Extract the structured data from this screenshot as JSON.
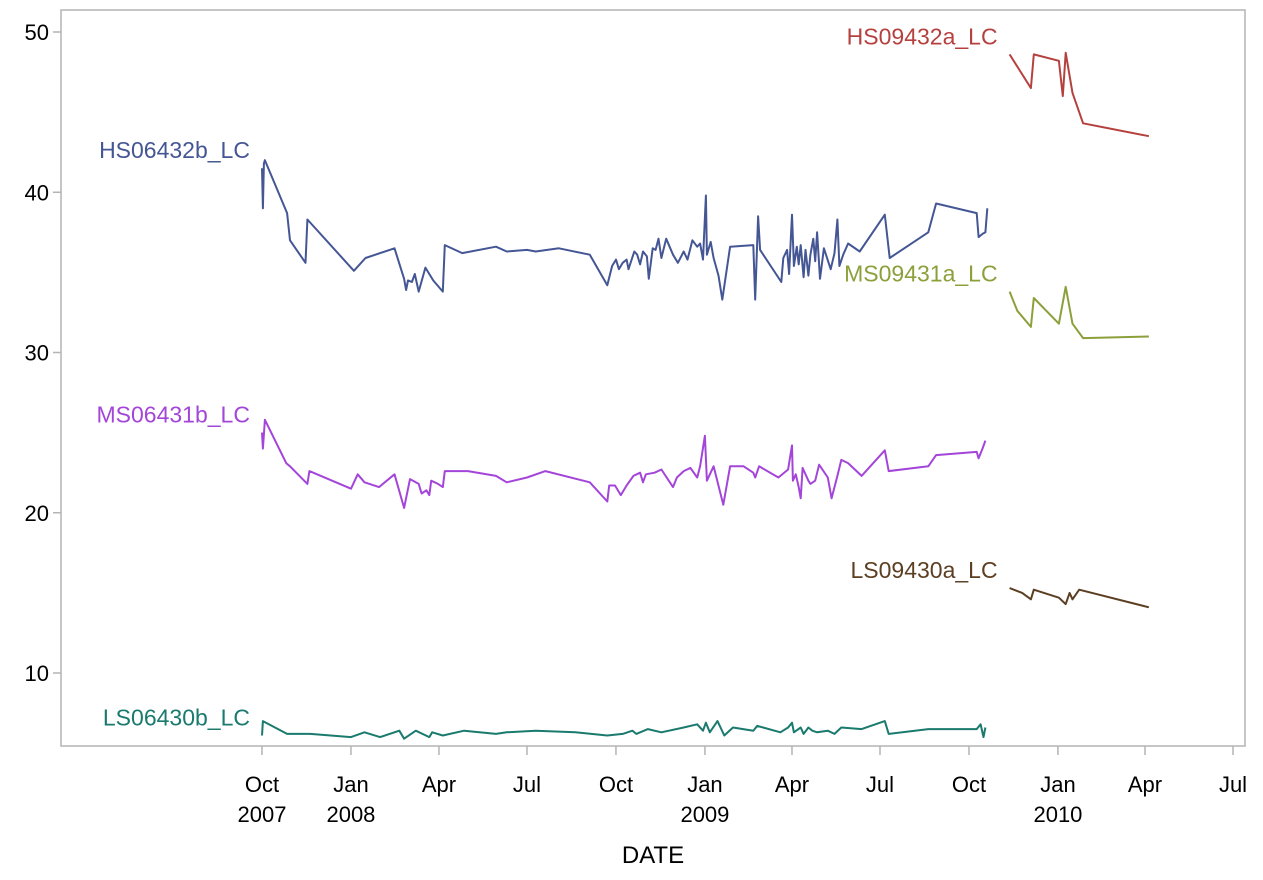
{
  "chart_data": {
    "type": "line",
    "title": "",
    "xlabel": "DATE",
    "ylabel": "",
    "ylim": [
      5,
      51
    ],
    "xlim": [
      "2007-07-01",
      "2010-07-01"
    ],
    "grid": false,
    "legend": "none (series labelled inline at start of each line)",
    "y_ticks": [
      "10",
      "20",
      "30",
      "40",
      "50"
    ],
    "x_ticks": [
      {
        "date": "2007-10-01",
        "label": "Oct",
        "year": "2007"
      },
      {
        "date": "2008-01-01",
        "label": "Jan",
        "year": "2008"
      },
      {
        "date": "2008-04-01",
        "label": "Apr",
        "year": ""
      },
      {
        "date": "2008-07-01",
        "label": "Jul",
        "year": ""
      },
      {
        "date": "2008-10-01",
        "label": "Oct",
        "year": ""
      },
      {
        "date": "2009-01-01",
        "label": "Jan",
        "year": "2009"
      },
      {
        "date": "2009-04-01",
        "label": "Apr",
        "year": ""
      },
      {
        "date": "2009-07-01",
        "label": "Jul",
        "year": ""
      },
      {
        "date": "2009-10-01",
        "label": "Oct",
        "year": ""
      },
      {
        "date": "2010-01-01",
        "label": "Jan",
        "year": "2010"
      },
      {
        "date": "2010-04-01",
        "label": "Apr",
        "year": ""
      },
      {
        "date": "2010-07-01",
        "label": "Jul",
        "year": ""
      }
    ],
    "series": [
      {
        "name": "HS09432a_LC",
        "color": "#b5413f",
        "points": [
          [
            "2009-11-12",
            48.6
          ],
          [
            "2009-12-04",
            46.5
          ],
          [
            "2009-12-07",
            48.6
          ],
          [
            "2010-01-02",
            48.2
          ],
          [
            "2010-01-06",
            46.0
          ],
          [
            "2010-01-09",
            48.7
          ],
          [
            "2010-01-16",
            46.2
          ],
          [
            "2010-01-27",
            44.3
          ],
          [
            "2010-04-05",
            43.5
          ]
        ]
      },
      {
        "name": "HS06432b_LC",
        "color": "#445694",
        "points": [
          [
            "2007-10-01",
            41.5
          ],
          [
            "2007-10-02",
            39.0
          ],
          [
            "2007-10-03",
            41.8
          ],
          [
            "2007-10-04",
            42.0
          ],
          [
            "2007-10-27",
            38.7
          ],
          [
            "2007-10-30",
            37.0
          ],
          [
            "2007-11-15",
            35.6
          ],
          [
            "2007-11-17",
            38.3
          ],
          [
            "2008-01-04",
            35.1
          ],
          [
            "2008-01-16",
            35.9
          ],
          [
            "2008-02-15",
            36.5
          ],
          [
            "2008-02-25",
            34.6
          ],
          [
            "2008-02-27",
            33.9
          ],
          [
            "2008-02-29",
            34.5
          ],
          [
            "2008-03-04",
            34.4
          ],
          [
            "2008-03-07",
            34.9
          ],
          [
            "2008-03-11",
            33.8
          ],
          [
            "2008-03-18",
            35.3
          ],
          [
            "2008-03-26",
            34.5
          ],
          [
            "2008-04-05",
            33.8
          ],
          [
            "2008-04-07",
            36.7
          ],
          [
            "2008-04-25",
            36.2
          ],
          [
            "2008-05-30",
            36.6
          ],
          [
            "2008-06-10",
            36.3
          ],
          [
            "2008-07-01",
            36.4
          ],
          [
            "2008-07-10",
            36.3
          ],
          [
            "2008-08-03",
            36.5
          ],
          [
            "2008-09-04",
            36.1
          ],
          [
            "2008-09-22",
            34.2
          ],
          [
            "2008-09-27",
            35.4
          ],
          [
            "2008-10-01",
            35.8
          ],
          [
            "2008-10-04",
            35.2
          ],
          [
            "2008-10-08",
            35.6
          ],
          [
            "2008-10-12",
            35.8
          ],
          [
            "2008-10-14",
            35.2
          ],
          [
            "2008-10-20",
            36.3
          ],
          [
            "2008-10-23",
            36.1
          ],
          [
            "2008-10-26",
            35.5
          ],
          [
            "2008-10-29",
            36.3
          ],
          [
            "2008-11-02",
            36.0
          ],
          [
            "2008-11-04",
            34.6
          ],
          [
            "2008-11-08",
            36.5
          ],
          [
            "2008-11-11",
            36.4
          ],
          [
            "2008-11-14",
            37.1
          ],
          [
            "2008-11-17",
            35.9
          ],
          [
            "2008-11-22",
            37.1
          ],
          [
            "2008-11-29",
            36.1
          ],
          [
            "2008-12-04",
            35.6
          ],
          [
            "2008-12-10",
            36.3
          ],
          [
            "2008-12-14",
            35.8
          ],
          [
            "2008-12-19",
            37.0
          ],
          [
            "2008-12-24",
            36.6
          ],
          [
            "2008-12-27",
            36.8
          ],
          [
            "2008-12-30",
            35.8
          ],
          [
            "2009-01-02",
            39.8
          ],
          [
            "2009-01-03",
            36.1
          ],
          [
            "2009-01-07",
            36.9
          ],
          [
            "2009-01-10",
            35.9
          ],
          [
            "2009-01-15",
            34.8
          ],
          [
            "2009-01-19",
            33.3
          ],
          [
            "2009-01-27",
            36.6
          ],
          [
            "2009-02-20",
            36.7
          ],
          [
            "2009-02-22",
            33.3
          ],
          [
            "2009-02-25",
            38.5
          ],
          [
            "2009-02-27",
            36.4
          ],
          [
            "2009-03-21",
            34.4
          ],
          [
            "2009-03-23",
            35.9
          ],
          [
            "2009-03-27",
            36.4
          ],
          [
            "2009-03-29",
            34.9
          ],
          [
            "2009-04-01",
            38.6
          ],
          [
            "2009-04-03",
            35.4
          ],
          [
            "2009-04-06",
            36.6
          ],
          [
            "2009-04-08",
            35.5
          ],
          [
            "2009-04-10",
            36.7
          ],
          [
            "2009-04-13",
            34.7
          ],
          [
            "2009-04-15",
            36.4
          ],
          [
            "2009-04-18",
            34.8
          ],
          [
            "2009-04-20",
            36.1
          ],
          [
            "2009-04-23",
            37.1
          ],
          [
            "2009-04-25",
            35.7
          ],
          [
            "2009-04-27",
            37.5
          ],
          [
            "2009-04-30",
            34.6
          ],
          [
            "2009-05-04",
            36.5
          ],
          [
            "2009-05-11",
            35.2
          ],
          [
            "2009-05-15",
            36.2
          ],
          [
            "2009-05-18",
            38.3
          ],
          [
            "2009-05-20",
            35.4
          ],
          [
            "2009-05-24",
            36.1
          ],
          [
            "2009-05-29",
            36.8
          ],
          [
            "2009-06-10",
            36.3
          ],
          [
            "2009-07-06",
            38.6
          ],
          [
            "2009-07-11",
            35.9
          ],
          [
            "2009-08-20",
            37.5
          ],
          [
            "2009-08-28",
            39.3
          ],
          [
            "2009-10-09",
            38.7
          ],
          [
            "2009-10-11",
            37.2
          ],
          [
            "2009-10-15",
            37.4
          ],
          [
            "2009-10-18",
            37.5
          ],
          [
            "2009-10-20",
            39.0
          ]
        ]
      },
      {
        "name": "MS09431a_LC",
        "color": "#8ba03b",
        "points": [
          [
            "2009-11-12",
            33.8
          ],
          [
            "2009-11-20",
            32.6
          ],
          [
            "2009-12-04",
            31.6
          ],
          [
            "2009-12-07",
            33.4
          ],
          [
            "2010-01-02",
            31.8
          ],
          [
            "2010-01-09",
            34.1
          ],
          [
            "2010-01-16",
            31.8
          ],
          [
            "2010-01-27",
            30.9
          ],
          [
            "2010-04-05",
            31.0
          ]
        ]
      },
      {
        "name": "MS06431b_LC",
        "color": "#a445d9",
        "points": [
          [
            "2007-10-01",
            25.0
          ],
          [
            "2007-10-02",
            24.0
          ],
          [
            "2007-10-04",
            25.8
          ],
          [
            "2007-10-26",
            23.1
          ],
          [
            "2007-10-30",
            22.9
          ],
          [
            "2007-11-17",
            21.8
          ],
          [
            "2007-11-19",
            22.6
          ],
          [
            "2008-01-01",
            21.5
          ],
          [
            "2008-01-08",
            22.4
          ],
          [
            "2008-01-15",
            21.9
          ],
          [
            "2008-01-30",
            21.6
          ],
          [
            "2008-02-15",
            22.4
          ],
          [
            "2008-02-25",
            20.3
          ],
          [
            "2008-03-02",
            22.1
          ],
          [
            "2008-03-11",
            21.8
          ],
          [
            "2008-03-14",
            21.2
          ],
          [
            "2008-03-19",
            21.4
          ],
          [
            "2008-03-22",
            21.1
          ],
          [
            "2008-03-24",
            22.0
          ],
          [
            "2008-03-31",
            21.8
          ],
          [
            "2008-04-05",
            21.6
          ],
          [
            "2008-04-07",
            22.6
          ],
          [
            "2008-05-01",
            22.6
          ],
          [
            "2008-05-30",
            22.3
          ],
          [
            "2008-06-10",
            21.9
          ],
          [
            "2008-07-01",
            22.2
          ],
          [
            "2008-07-20",
            22.6
          ],
          [
            "2008-09-04",
            21.9
          ],
          [
            "2008-09-22",
            20.7
          ],
          [
            "2008-09-24",
            21.7
          ],
          [
            "2008-09-30",
            21.7
          ],
          [
            "2008-10-06",
            21.1
          ],
          [
            "2008-10-12",
            21.7
          ],
          [
            "2008-10-19",
            22.3
          ],
          [
            "2008-10-26",
            22.5
          ],
          [
            "2008-10-29",
            21.9
          ],
          [
            "2008-11-01",
            22.4
          ],
          [
            "2008-11-10",
            22.5
          ],
          [
            "2008-11-17",
            22.7
          ],
          [
            "2008-11-29",
            21.6
          ],
          [
            "2008-12-03",
            22.2
          ],
          [
            "2008-12-10",
            22.6
          ],
          [
            "2008-12-17",
            22.8
          ],
          [
            "2008-12-24",
            22.2
          ],
          [
            "2008-12-27",
            22.9
          ],
          [
            "2009-01-01",
            24.8
          ],
          [
            "2009-01-03",
            22.0
          ],
          [
            "2009-01-10",
            22.9
          ],
          [
            "2009-01-20",
            20.5
          ],
          [
            "2009-01-27",
            22.9
          ],
          [
            "2009-02-10",
            22.9
          ],
          [
            "2009-02-20",
            22.5
          ],
          [
            "2009-02-22",
            22.2
          ],
          [
            "2009-02-26",
            22.9
          ],
          [
            "2009-03-18",
            22.2
          ],
          [
            "2009-03-28",
            22.7
          ],
          [
            "2009-04-01",
            24.2
          ],
          [
            "2009-04-02",
            22.0
          ],
          [
            "2009-04-05",
            22.4
          ],
          [
            "2009-04-08",
            21.6
          ],
          [
            "2009-04-10",
            20.9
          ],
          [
            "2009-04-12",
            22.8
          ],
          [
            "2009-04-18",
            22.0
          ],
          [
            "2009-04-20",
            21.8
          ],
          [
            "2009-04-25",
            22.0
          ],
          [
            "2009-04-29",
            23.0
          ],
          [
            "2009-05-08",
            22.2
          ],
          [
            "2009-05-12",
            20.9
          ],
          [
            "2009-05-18",
            22.3
          ],
          [
            "2009-05-22",
            23.3
          ],
          [
            "2009-05-29",
            23.1
          ],
          [
            "2009-06-12",
            22.3
          ],
          [
            "2009-07-06",
            23.9
          ],
          [
            "2009-07-10",
            22.6
          ],
          [
            "2009-08-20",
            22.9
          ],
          [
            "2009-08-28",
            23.6
          ],
          [
            "2009-10-09",
            23.8
          ],
          [
            "2009-10-11",
            23.4
          ],
          [
            "2009-10-15",
            24.0
          ],
          [
            "2009-10-18",
            24.5
          ]
        ]
      },
      {
        "name": "LS09430a_LC",
        "color": "#5c3f22",
        "points": [
          [
            "2009-11-12",
            15.3
          ],
          [
            "2009-11-25",
            15.0
          ],
          [
            "2009-12-04",
            14.6
          ],
          [
            "2009-12-07",
            15.2
          ],
          [
            "2010-01-02",
            14.7
          ],
          [
            "2010-01-09",
            14.3
          ],
          [
            "2010-01-13",
            15.0
          ],
          [
            "2010-01-16",
            14.6
          ],
          [
            "2010-01-23",
            15.2
          ],
          [
            "2010-04-05",
            14.1
          ]
        ]
      },
      {
        "name": "LS06430b_LC",
        "color": "#1a7a6e",
        "points": [
          [
            "2007-10-01",
            6.1
          ],
          [
            "2007-10-02",
            7.0
          ],
          [
            "2007-10-27",
            6.2
          ],
          [
            "2007-11-20",
            6.2
          ],
          [
            "2008-01-01",
            6.0
          ],
          [
            "2008-01-15",
            6.3
          ],
          [
            "2008-01-31",
            6.0
          ],
          [
            "2008-02-20",
            6.4
          ],
          [
            "2008-02-25",
            5.9
          ],
          [
            "2008-03-08",
            6.4
          ],
          [
            "2008-03-22",
            6.0
          ],
          [
            "2008-03-25",
            6.3
          ],
          [
            "2008-04-05",
            6.1
          ],
          [
            "2008-04-27",
            6.4
          ],
          [
            "2008-05-30",
            6.2
          ],
          [
            "2008-06-10",
            6.3
          ],
          [
            "2008-07-10",
            6.4
          ],
          [
            "2008-08-20",
            6.3
          ],
          [
            "2008-09-22",
            6.1
          ],
          [
            "2008-10-08",
            6.2
          ],
          [
            "2008-10-18",
            6.4
          ],
          [
            "2008-10-22",
            6.2
          ],
          [
            "2008-11-03",
            6.5
          ],
          [
            "2008-11-17",
            6.3
          ],
          [
            "2008-12-10",
            6.6
          ],
          [
            "2008-12-24",
            6.8
          ],
          [
            "2008-12-30",
            6.4
          ],
          [
            "2009-01-02",
            6.9
          ],
          [
            "2009-01-06",
            6.3
          ],
          [
            "2009-01-14",
            7.0
          ],
          [
            "2009-01-21",
            6.1
          ],
          [
            "2009-01-30",
            6.6
          ],
          [
            "2009-02-20",
            6.4
          ],
          [
            "2009-02-24",
            6.7
          ],
          [
            "2009-03-20",
            6.3
          ],
          [
            "2009-03-28",
            6.6
          ],
          [
            "2009-04-01",
            6.9
          ],
          [
            "2009-04-03",
            6.3
          ],
          [
            "2009-04-10",
            6.6
          ],
          [
            "2009-04-13",
            6.2
          ],
          [
            "2009-04-18",
            6.6
          ],
          [
            "2009-04-22",
            6.4
          ],
          [
            "2009-04-27",
            6.3
          ],
          [
            "2009-05-08",
            6.4
          ],
          [
            "2009-05-15",
            6.2
          ],
          [
            "2009-05-22",
            6.6
          ],
          [
            "2009-06-12",
            6.5
          ],
          [
            "2009-07-06",
            7.0
          ],
          [
            "2009-07-10",
            6.2
          ],
          [
            "2009-08-20",
            6.5
          ],
          [
            "2009-10-09",
            6.5
          ],
          [
            "2009-10-13",
            6.8
          ],
          [
            "2009-10-16",
            6.0
          ],
          [
            "2009-10-18",
            6.6
          ]
        ]
      }
    ]
  }
}
